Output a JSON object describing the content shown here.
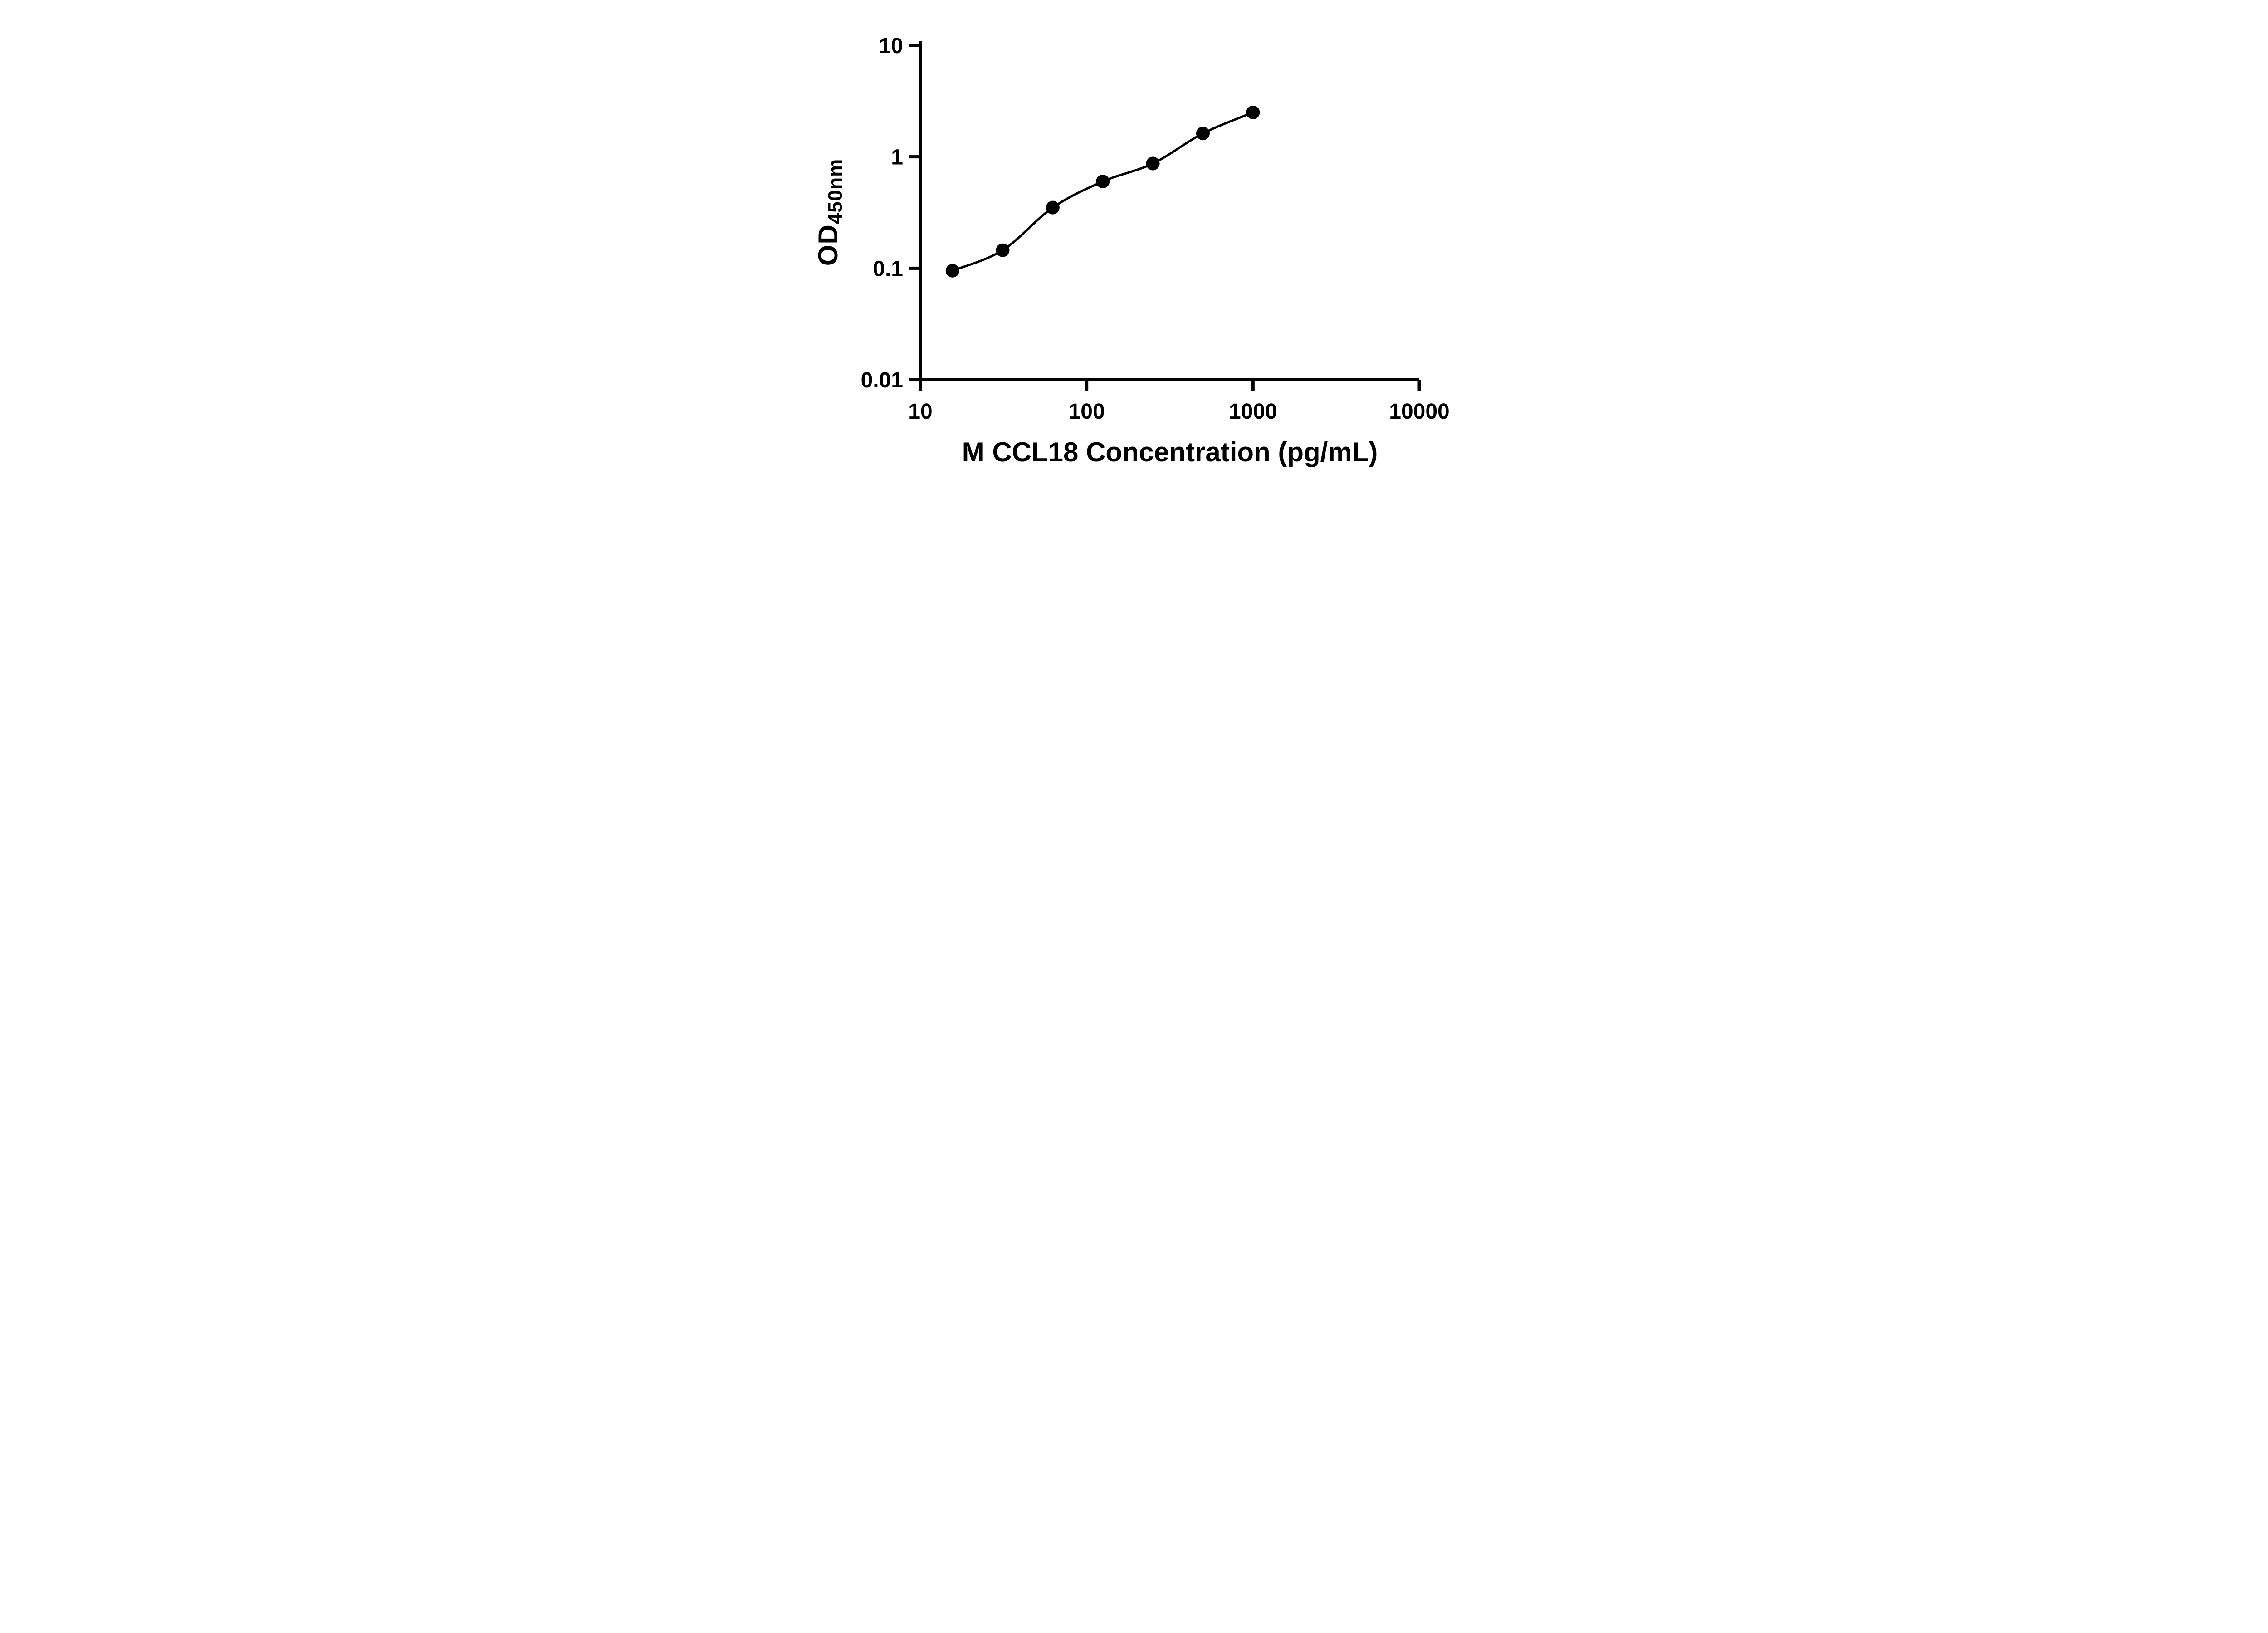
{
  "chart_data": {
    "type": "scatter",
    "x": [
      15.6,
      31.25,
      62.5,
      125,
      250,
      500,
      1000
    ],
    "y": [
      0.095,
      0.145,
      0.35,
      0.6,
      0.87,
      1.62,
      2.5
    ],
    "title": "",
    "xlabel": "M CCL18 Concentration (pg/mL)",
    "ylabel_base": "OD",
    "ylabel_sub": "450nm",
    "x_scale": "log",
    "y_scale": "log",
    "xlim": [
      10,
      10000
    ],
    "ylim": [
      0.01,
      10
    ],
    "x_ticks": [
      10,
      100,
      1000,
      10000
    ],
    "x_tick_labels": [
      "10",
      "100",
      "1000",
      "10000"
    ],
    "y_ticks": [
      10,
      1,
      0.1,
      0.01
    ],
    "y_tick_labels": [
      "10",
      "1",
      "0.1",
      "0.01"
    ],
    "grid": false,
    "legend": false,
    "line_through_points": true,
    "marker_color": "#000000",
    "line_color": "#000000",
    "axis_color": "#000000",
    "background_color": "#ffffff"
  }
}
